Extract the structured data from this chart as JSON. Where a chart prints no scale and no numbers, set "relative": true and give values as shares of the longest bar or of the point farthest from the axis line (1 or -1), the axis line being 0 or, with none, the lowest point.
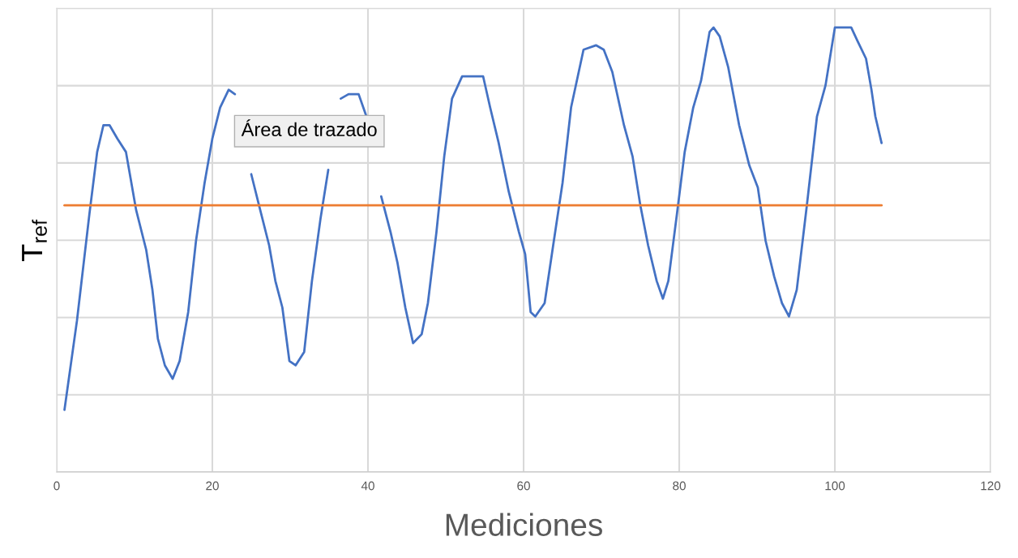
{
  "chart_data": {
    "type": "line",
    "xlabel": "Mediciones",
    "ylabel": "T$_{ref}$",
    "relative": true,
    "grid": true,
    "xlim": [
      0,
      120
    ],
    "xticks": [
      0,
      20,
      40,
      60,
      80,
      100,
      120
    ],
    "annotations": [
      "Área de trazado"
    ],
    "series": [
      {
        "color": "#4472c4",
        "x": [
          1.0,
          2.6,
          4.2,
          5.2,
          6.0,
          6.8,
          7.8,
          8.9,
          9.4,
          10.2,
          11.5,
          12.3,
          13.0,
          13.9,
          14.9,
          15.8,
          16.9,
          17.9,
          19.0,
          20.0,
          21.0,
          22.1,
          22.9,
          24.0,
          25.0,
          26.0,
          27.3,
          28.1,
          29.0,
          29.9,
          30.7,
          31.8,
          32.8,
          33.9,
          34.9,
          35.6,
          36.5,
          37.5,
          38.8,
          39.8,
          40.6,
          41.7,
          42.9,
          43.8,
          44.8,
          45.8,
          46.9,
          47.7,
          48.8,
          49.8,
          50.8,
          52.1,
          53.6,
          54.8,
          55.7,
          56.8,
          58.1,
          59.4,
          60.2,
          60.9,
          61.5,
          62.7,
          63.8,
          65.0,
          66.1,
          67.7,
          69.3,
          70.3,
          71.4,
          72.9,
          74.0,
          75.0,
          76.0,
          77.1,
          77.9,
          78.6,
          79.7,
          80.7,
          81.8,
          82.8,
          83.9,
          84.4,
          85.2,
          86.3,
          87.7,
          89.0,
          90.1,
          91.1,
          92.2,
          93.2,
          94.1,
          95.1,
          96.4,
          97.7,
          98.8,
          100.0,
          101.3,
          102.1,
          102.9,
          104.0,
          104.7,
          105.2,
          106.0
        ],
        "values": [
          0.14,
          0.34,
          0.58,
          0.72,
          0.78,
          0.78,
          0.75,
          0.72,
          0.67,
          0.59,
          0.5,
          0.41,
          0.3,
          0.24,
          0.21,
          0.25,
          0.36,
          0.52,
          0.65,
          0.75,
          0.82,
          0.86,
          0.85,
          null,
          0.67,
          0.6,
          0.51,
          0.43,
          0.37,
          0.25,
          0.24,
          0.27,
          0.43,
          0.57,
          0.68,
          null,
          0.84,
          0.85,
          0.85,
          0.8,
          null,
          0.62,
          0.54,
          0.47,
          0.37,
          0.29,
          0.31,
          0.38,
          0.54,
          0.71,
          0.84,
          0.89,
          0.89,
          0.89,
          0.82,
          0.74,
          0.63,
          0.54,
          0.49,
          0.36,
          0.35,
          0.38,
          0.51,
          0.65,
          0.82,
          0.95,
          0.96,
          0.95,
          0.9,
          0.78,
          0.71,
          0.6,
          0.51,
          0.43,
          0.39,
          0.43,
          0.58,
          0.72,
          0.82,
          0.88,
          0.99,
          1.0,
          0.98,
          0.91,
          0.78,
          0.69,
          0.64,
          0.52,
          0.44,
          0.38,
          0.35,
          0.41,
          0.6,
          0.8,
          0.87,
          1.0,
          1.0,
          1.0,
          0.97,
          0.93,
          0.86,
          0.8,
          0.74
        ]
      },
      {
        "color": "#ed7d31",
        "x": [
          1,
          106
        ],
        "values": [
          0.6,
          0.6
        ]
      }
    ]
  }
}
